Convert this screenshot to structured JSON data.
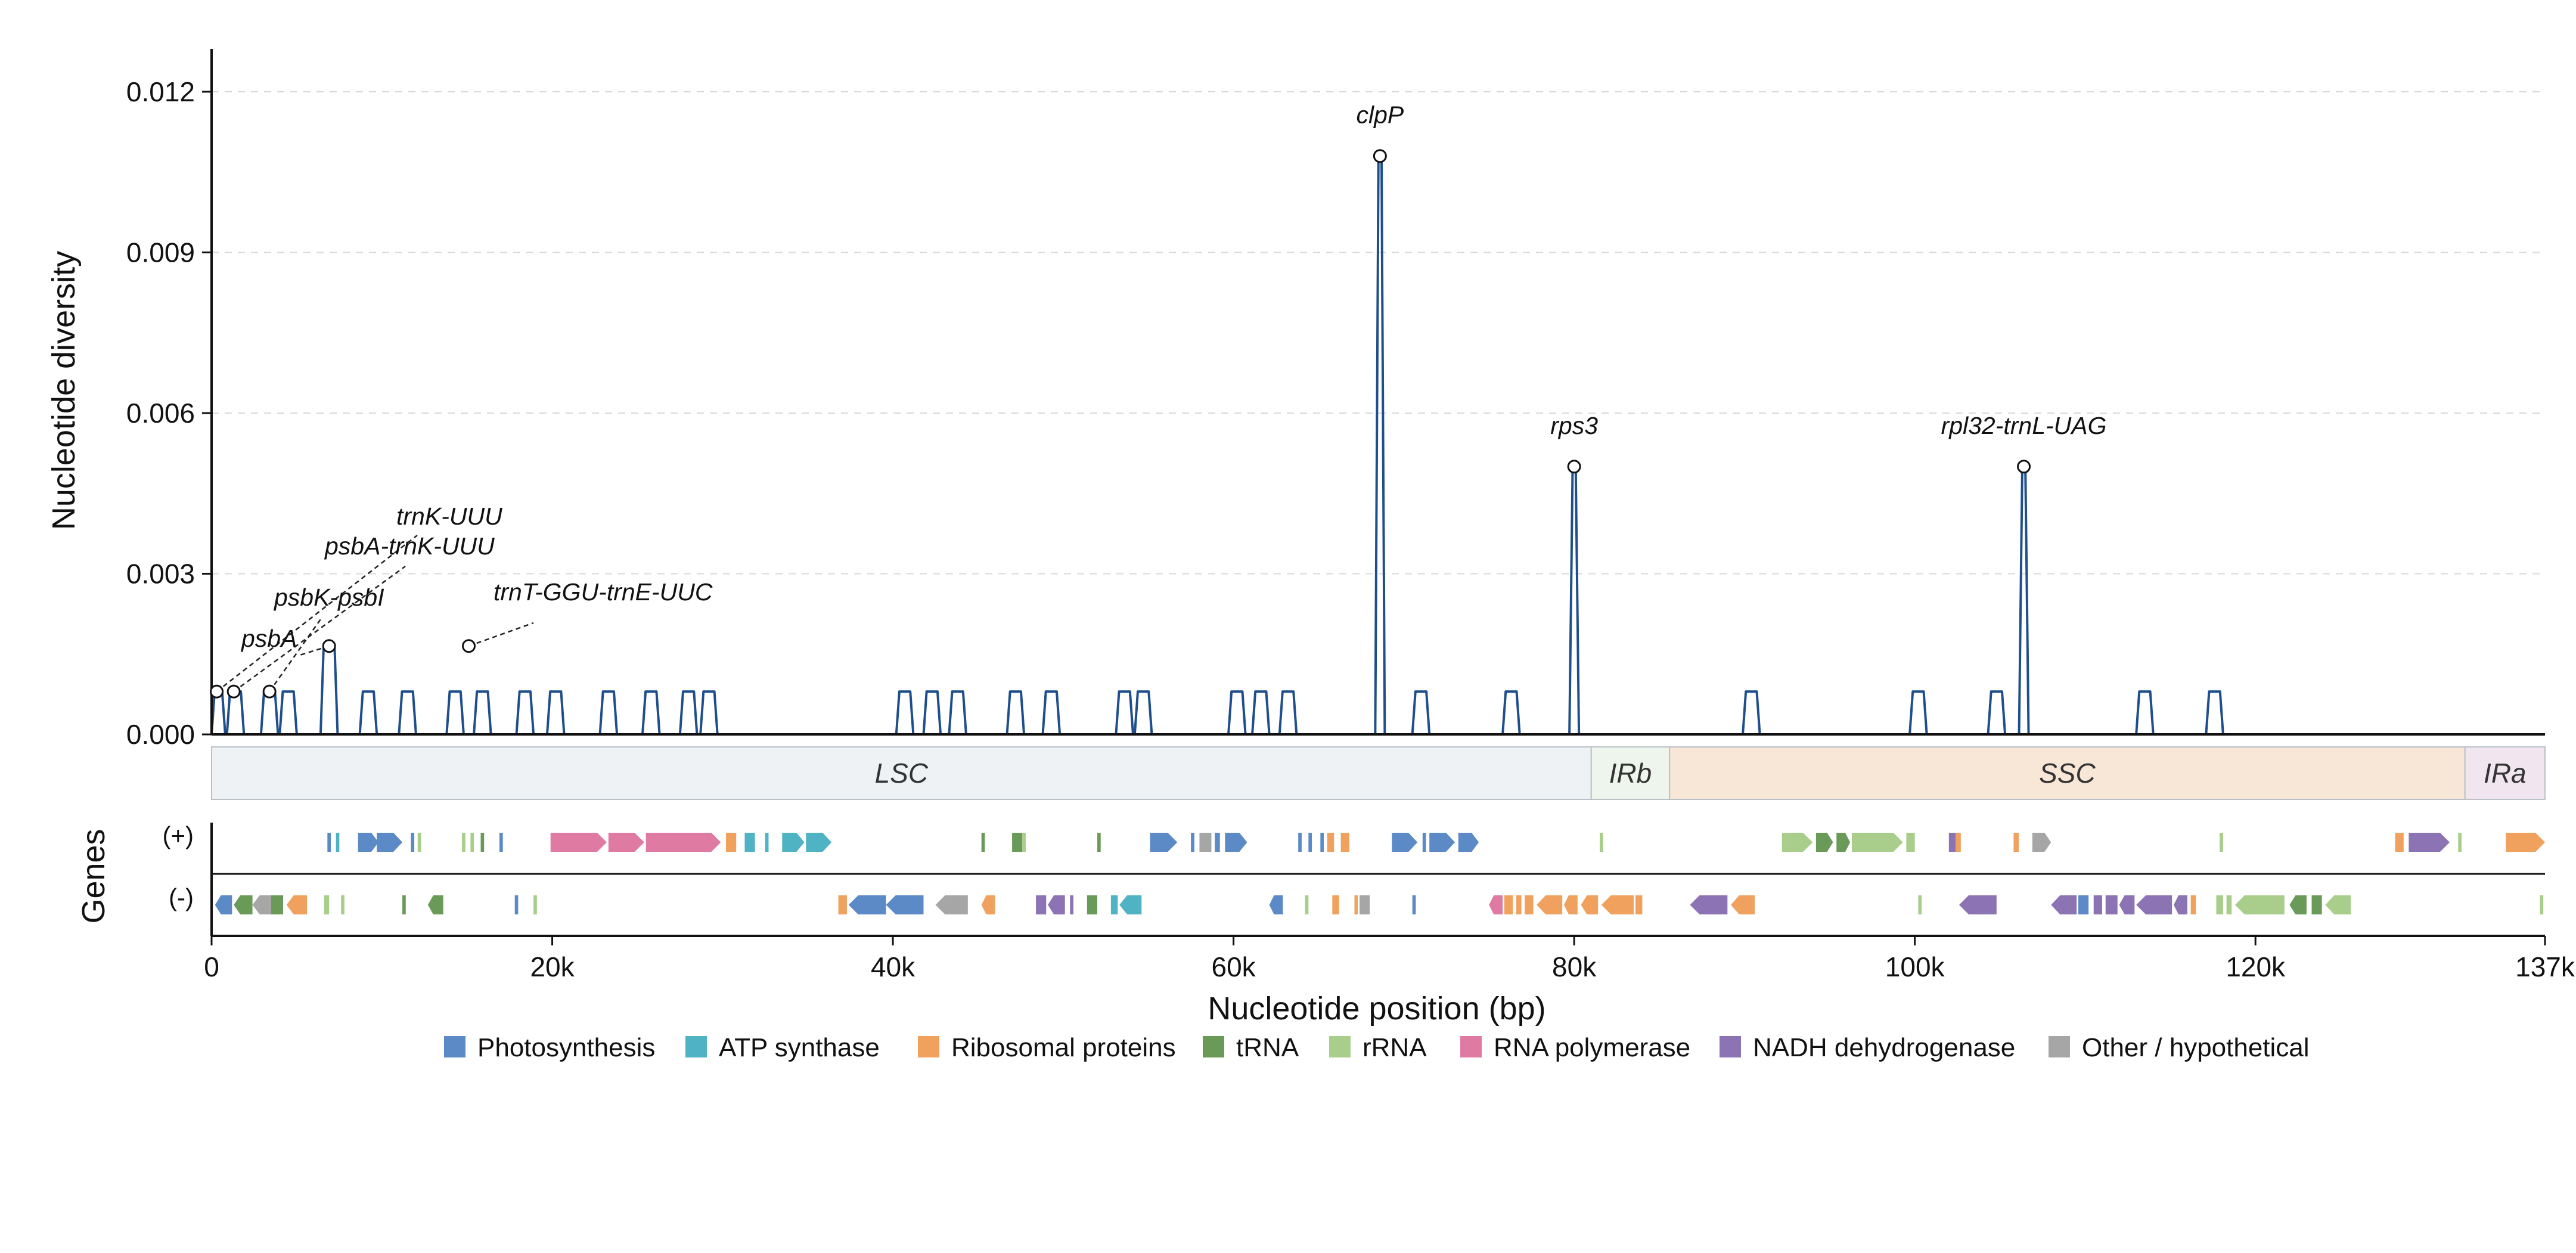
{
  "chart_data": {
    "type": "line",
    "xlabel": "Nucleotide position (bp)",
    "ylabel": "Nucleotide diversity",
    "genes_axis_label": "Genes",
    "xlim": [
      0,
      137000
    ],
    "ylim": [
      0,
      0.0128
    ],
    "x_ticks": [
      {
        "value": 0,
        "label": "0"
      },
      {
        "value": 20000,
        "label": "20k"
      },
      {
        "value": 40000,
        "label": "40k"
      },
      {
        "value": 60000,
        "label": "60k"
      },
      {
        "value": 80000,
        "label": "80k"
      },
      {
        "value": 100000,
        "label": "100k"
      },
      {
        "value": 120000,
        "label": "120k"
      },
      {
        "value": 137000,
        "label": "137k"
      }
    ],
    "y_ticks": [
      {
        "value": 0,
        "label": "0.000"
      },
      {
        "value": 0.003,
        "label": "0.003"
      },
      {
        "value": 0.006,
        "label": "0.006"
      },
      {
        "value": 0.009,
        "label": "0.009"
      },
      {
        "value": 0.012,
        "label": "0.012"
      }
    ],
    "grid": "horizontal dashed",
    "line_color": "#1f4e8c",
    "bumps": [
      {
        "x": 300,
        "y": 0.0008
      },
      {
        "x": 1400,
        "y": 0.0008
      },
      {
        "x": 3400,
        "y": 0.0008
      },
      {
        "x": 4500,
        "y": 0.0008
      },
      {
        "x": 6900,
        "y": 0.00165
      },
      {
        "x": 9200,
        "y": 0.0008
      },
      {
        "x": 11500,
        "y": 0.0008
      },
      {
        "x": 14300,
        "y": 0.0008
      },
      {
        "x": 15900,
        "y": 0.0008
      },
      {
        "x": 18400,
        "y": 0.0008
      },
      {
        "x": 20200,
        "y": 0.0008
      },
      {
        "x": 23300,
        "y": 0.0008
      },
      {
        "x": 25800,
        "y": 0.0008
      },
      {
        "x": 28000,
        "y": 0.0008
      },
      {
        "x": 29200,
        "y": 0.0008
      },
      {
        "x": 40700,
        "y": 0.0008
      },
      {
        "x": 42300,
        "y": 0.0008
      },
      {
        "x": 43800,
        "y": 0.0008
      },
      {
        "x": 47200,
        "y": 0.0008
      },
      {
        "x": 49300,
        "y": 0.0008
      },
      {
        "x": 53600,
        "y": 0.0008
      },
      {
        "x": 54700,
        "y": 0.0008
      },
      {
        "x": 60200,
        "y": 0.0008
      },
      {
        "x": 61600,
        "y": 0.0008
      },
      {
        "x": 63200,
        "y": 0.0008
      },
      {
        "x": 71000,
        "y": 0.0008
      },
      {
        "x": 76300,
        "y": 0.0008
      },
      {
        "x": 90400,
        "y": 0.0008
      },
      {
        "x": 100200,
        "y": 0.0008
      },
      {
        "x": 104800,
        "y": 0.0008
      },
      {
        "x": 113500,
        "y": 0.0008
      },
      {
        "x": 117600,
        "y": 0.0008
      }
    ],
    "peaks": [
      {
        "x": 68600,
        "y": 0.0108,
        "label": "clpP"
      },
      {
        "x": 80000,
        "y": 0.005,
        "label": "rps3"
      },
      {
        "x": 106400,
        "y": 0.005,
        "label": "rpl32-trnL-UAG"
      }
    ],
    "annotated_points": [
      {
        "x": 300,
        "y": 0.0008,
        "label": "trnK-UUU"
      },
      {
        "x": 1300,
        "y": 0.0008,
        "label": "psbA-trnK-UUU"
      },
      {
        "x": 3400,
        "y": 0.0008,
        "label": "psbK-psbI"
      },
      {
        "x": 6900,
        "y": 0.00165,
        "label": "psbA"
      },
      {
        "x": 15100,
        "y": 0.00165,
        "label": "trnT-GGU-trnE-UUC"
      }
    ],
    "regions": [
      {
        "name": "LSC",
        "start": 0,
        "end": 81000,
        "color": "#eef2f5"
      },
      {
        "name": "IRb",
        "start": 81000,
        "end": 85600,
        "color": "#eef5ec"
      },
      {
        "name": "SSC",
        "start": 85600,
        "end": 132300,
        "color": "#f8e6d6"
      },
      {
        "name": "IRa",
        "start": 132300,
        "end": 137000,
        "color": "#f1e6f0"
      }
    ],
    "strands": [
      {
        "label": "(+)"
      },
      {
        "label": "(-)"
      }
    ],
    "categories": [
      {
        "name": "Photosynthesis",
        "color": "#5b8ac6"
      },
      {
        "name": "ATP synthase",
        "color": "#4fb3c4"
      },
      {
        "name": "Ribosomal proteins",
        "color": "#f0a15e"
      },
      {
        "name": "tRNA",
        "color": "#6a9a58"
      },
      {
        "name": "rRNA",
        "color": "#a9ce8b"
      },
      {
        "name": "RNA polymerase",
        "color": "#df7aa3"
      },
      {
        "name": "NADH dehydrogenase",
        "color": "#8c73b3"
      },
      {
        "name": "Other / hypothetical",
        "color": "#a6a6a6"
      }
    ],
    "genes_plus": [
      {
        "start": 6800,
        "end": 7000,
        "cat": 0
      },
      {
        "start": 7300,
        "end": 7500,
        "cat": 1
      },
      {
        "start": 8600,
        "end": 9800,
        "cat": 0
      },
      {
        "start": 9700,
        "end": 11200,
        "cat": 0
      },
      {
        "start": 11700,
        "end": 11900,
        "cat": 0
      },
      {
        "start": 12100,
        "end": 12300,
        "cat": 4
      },
      {
        "start": 14700,
        "end": 14900,
        "cat": 4
      },
      {
        "start": 15200,
        "end": 15400,
        "cat": 4
      },
      {
        "start": 15800,
        "end": 16000,
        "cat": 3
      },
      {
        "start": 16900,
        "end": 17100,
        "cat": 0
      },
      {
        "start": 19900,
        "end": 23200,
        "cat": 5
      },
      {
        "start": 23300,
        "end": 25400,
        "cat": 5
      },
      {
        "start": 25500,
        "end": 29900,
        "cat": 5
      },
      {
        "start": 30200,
        "end": 30800,
        "cat": 2
      },
      {
        "start": 31300,
        "end": 31900,
        "cat": 1
      },
      {
        "start": 32500,
        "end": 32700,
        "cat": 1
      },
      {
        "start": 33500,
        "end": 34800,
        "cat": 1
      },
      {
        "start": 34900,
        "end": 36400,
        "cat": 1
      },
      {
        "start": 45200,
        "end": 45400,
        "cat": 3
      },
      {
        "start": 47000,
        "end": 47600,
        "cat": 3
      },
      {
        "start": 47600,
        "end": 47800,
        "cat": 4
      },
      {
        "start": 52000,
        "end": 52200,
        "cat": 3
      },
      {
        "start": 55100,
        "end": 56700,
        "cat": 0
      },
      {
        "start": 57500,
        "end": 57700,
        "cat": 0
      },
      {
        "start": 58000,
        "end": 58700,
        "cat": 7
      },
      {
        "start": 58900,
        "end": 59200,
        "cat": 0
      },
      {
        "start": 59500,
        "end": 60800,
        "cat": 0
      },
      {
        "start": 63800,
        "end": 64000,
        "cat": 0
      },
      {
        "start": 64400,
        "end": 64600,
        "cat": 0
      },
      {
        "start": 65100,
        "end": 65300,
        "cat": 0
      },
      {
        "start": 65500,
        "end": 65900,
        "cat": 2
      },
      {
        "start": 66300,
        "end": 66800,
        "cat": 2
      },
      {
        "start": 69300,
        "end": 70800,
        "cat": 0
      },
      {
        "start": 71100,
        "end": 71300,
        "cat": 0
      },
      {
        "start": 71500,
        "end": 73000,
        "cat": 0
      },
      {
        "start": 73200,
        "end": 74400,
        "cat": 0
      },
      {
        "start": 81500,
        "end": 81700,
        "cat": 4
      },
      {
        "start": 92200,
        "end": 92400,
        "cat": 4
      },
      {
        "start": 92400,
        "end": 94000,
        "cat": 4
      },
      {
        "start": 94200,
        "end": 95200,
        "cat": 3
      },
      {
        "start": 95400,
        "end": 96200,
        "cat": 3
      },
      {
        "start": 96300,
        "end": 99300,
        "cat": 4
      },
      {
        "start": 99500,
        "end": 100000,
        "cat": 4
      },
      {
        "start": 102000,
        "end": 102400,
        "cat": 6
      },
      {
        "start": 102400,
        "end": 102700,
        "cat": 2
      },
      {
        "start": 105800,
        "end": 106100,
        "cat": 2
      },
      {
        "start": 106900,
        "end": 108000,
        "cat": 7
      },
      {
        "start": 117900,
        "end": 118100,
        "cat": 4
      },
      {
        "start": 128200,
        "end": 128700,
        "cat": 2
      },
      {
        "start": 129000,
        "end": 131400,
        "cat": 6
      },
      {
        "start": 131900,
        "end": 132100,
        "cat": 4
      },
      {
        "start": 134700,
        "end": 137000,
        "cat": 2
      }
    ],
    "genes_minus": [
      {
        "start": 200,
        "end": 1200,
        "cat": 0
      },
      {
        "start": 1300,
        "end": 2400,
        "cat": 3
      },
      {
        "start": 2400,
        "end": 3600,
        "cat": 7
      },
      {
        "start": 3500,
        "end": 4200,
        "cat": 3
      },
      {
        "start": 4400,
        "end": 5600,
        "cat": 2
      },
      {
        "start": 6600,
        "end": 6900,
        "cat": 4
      },
      {
        "start": 7600,
        "end": 7800,
        "cat": 4
      },
      {
        "start": 11200,
        "end": 11400,
        "cat": 3
      },
      {
        "start": 12700,
        "end": 13600,
        "cat": 3
      },
      {
        "start": 17800,
        "end": 18000,
        "cat": 0
      },
      {
        "start": 18900,
        "end": 19100,
        "cat": 4
      },
      {
        "start": 36800,
        "end": 37300,
        "cat": 2
      },
      {
        "start": 37400,
        "end": 39600,
        "cat": 0
      },
      {
        "start": 39600,
        "end": 41800,
        "cat": 0
      },
      {
        "start": 42500,
        "end": 44400,
        "cat": 7
      },
      {
        "start": 45200,
        "end": 46000,
        "cat": 2
      },
      {
        "start": 48400,
        "end": 49000,
        "cat": 6
      },
      {
        "start": 49100,
        "end": 50100,
        "cat": 6
      },
      {
        "start": 50400,
        "end": 50600,
        "cat": 6
      },
      {
        "start": 51400,
        "end": 52000,
        "cat": 3
      },
      {
        "start": 52800,
        "end": 53200,
        "cat": 1
      },
      {
        "start": 53300,
        "end": 54600,
        "cat": 1
      },
      {
        "start": 62100,
        "end": 62900,
        "cat": 0
      },
      {
        "start": 64200,
        "end": 64400,
        "cat": 4
      },
      {
        "start": 65800,
        "end": 66200,
        "cat": 2
      },
      {
        "start": 67100,
        "end": 67300,
        "cat": 2
      },
      {
        "start": 67400,
        "end": 68000,
        "cat": 7
      },
      {
        "start": 70500,
        "end": 70700,
        "cat": 0
      },
      {
        "start": 75000,
        "end": 75800,
        "cat": 5
      },
      {
        "start": 75900,
        "end": 76400,
        "cat": 2
      },
      {
        "start": 76600,
        "end": 76900,
        "cat": 2
      },
      {
        "start": 77100,
        "end": 77600,
        "cat": 2
      },
      {
        "start": 77800,
        "end": 79300,
        "cat": 2
      },
      {
        "start": 79400,
        "end": 80200,
        "cat": 2
      },
      {
        "start": 80400,
        "end": 81400,
        "cat": 2
      },
      {
        "start": 81600,
        "end": 83500,
        "cat": 2
      },
      {
        "start": 83600,
        "end": 84000,
        "cat": 2
      },
      {
        "start": 86800,
        "end": 89000,
        "cat": 6
      },
      {
        "start": 89200,
        "end": 90600,
        "cat": 2
      },
      {
        "start": 100200,
        "end": 100400,
        "cat": 4
      },
      {
        "start": 102600,
        "end": 104800,
        "cat": 6
      },
      {
        "start": 108000,
        "end": 109500,
        "cat": 6
      },
      {
        "start": 109600,
        "end": 110200,
        "cat": 0
      },
      {
        "start": 110500,
        "end": 111000,
        "cat": 6
      },
      {
        "start": 111200,
        "end": 111900,
        "cat": 6
      },
      {
        "start": 112000,
        "end": 112900,
        "cat": 6
      },
      {
        "start": 113000,
        "end": 115100,
        "cat": 6
      },
      {
        "start": 115200,
        "end": 116000,
        "cat": 6
      },
      {
        "start": 116200,
        "end": 116500,
        "cat": 2
      },
      {
        "start": 117700,
        "end": 118100,
        "cat": 4
      },
      {
        "start": 118300,
        "end": 118600,
        "cat": 4
      },
      {
        "start": 118800,
        "end": 121700,
        "cat": 4
      },
      {
        "start": 122000,
        "end": 123000,
        "cat": 3
      },
      {
        "start": 123300,
        "end": 123900,
        "cat": 3
      },
      {
        "start": 124100,
        "end": 125600,
        "cat": 4
      },
      {
        "start": 136700,
        "end": 136900,
        "cat": 4
      }
    ]
  }
}
